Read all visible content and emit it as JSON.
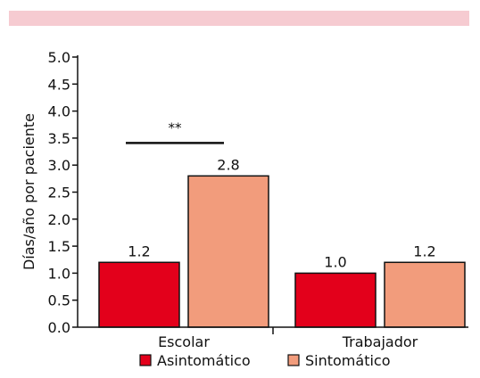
{
  "header_band": {
    "color": "#f6cbd1"
  },
  "chart_data": {
    "type": "bar",
    "ylabel": "Días/año por paciente",
    "xlabel": "",
    "ylim": [
      0.0,
      5.0
    ],
    "yticks": [
      "0.0",
      "0.5",
      "1.0",
      "1.5",
      "2.0",
      "2.5",
      "3.0",
      "3.5",
      "4.0",
      "4.5",
      "5.0"
    ],
    "categories": [
      "Escolar",
      "Trabajador"
    ],
    "series": [
      {
        "name": "Asintomático",
        "color": "#e3001b",
        "values": [
          1.2,
          1.0
        ],
        "labels": [
          "1.2",
          "1.0"
        ]
      },
      {
        "name": "Sintomático",
        "color": "#f29c7c",
        "values": [
          2.8,
          1.2
        ],
        "labels": [
          "2.8",
          "1.2"
        ]
      }
    ],
    "significance": {
      "label": "**",
      "category": "Escolar"
    },
    "legend_position": "bottom",
    "grid": false
  }
}
